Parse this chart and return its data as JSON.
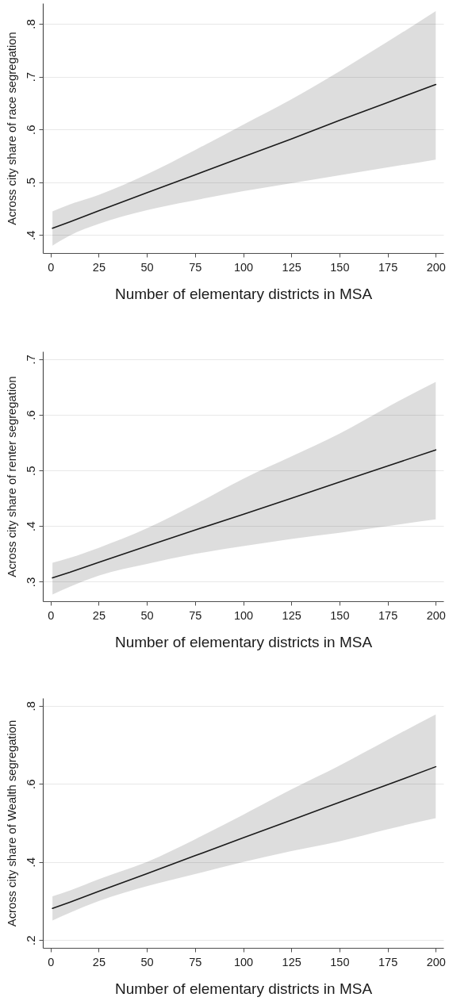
{
  "chart_data": [
    {
      "type": "line",
      "xlabel": "Number of elementary districts in MSA",
      "ylabel": "Across city share of race segregation",
      "xlim": [
        -4,
        204
      ],
      "xticks": [
        0,
        25,
        50,
        75,
        100,
        125,
        150,
        175,
        200
      ],
      "ylim": [
        0.366,
        0.839
      ],
      "yticks": [
        {
          "value": 0.4,
          "label": ".4"
        },
        {
          "value": 0.5,
          "label": ".5"
        },
        {
          "value": 0.6,
          "label": ".6"
        },
        {
          "value": 0.7,
          "label": ".7"
        },
        {
          "value": 0.8,
          "label": ".8"
        }
      ],
      "grid": "y",
      "x": [
        1,
        10,
        25,
        50,
        75,
        100,
        125,
        150,
        175,
        200
      ],
      "series": [
        {
          "color": "#1a1a1a",
          "values": [
            0.413,
            0.425,
            0.446,
            0.48,
            0.514,
            0.548,
            0.582,
            0.617,
            0.651,
            0.685
          ],
          "lower": [
            0.38,
            0.399,
            0.421,
            0.447,
            0.466,
            0.483,
            0.498,
            0.513,
            0.528,
            0.543
          ],
          "upper": [
            0.445,
            0.458,
            0.476,
            0.515,
            0.561,
            0.609,
            0.657,
            0.71,
            0.766,
            0.824
          ]
        }
      ]
    },
    {
      "type": "line",
      "xlabel": "Number of elementary districts in MSA",
      "ylabel": "Across city share of renter segregation",
      "xlim": [
        -4,
        204
      ],
      "xticks": [
        0,
        25,
        50,
        75,
        100,
        125,
        150,
        175,
        200
      ],
      "ylim": [
        0.265,
        0.714
      ],
      "yticks": [
        {
          "value": 0.3,
          "label": ".3"
        },
        {
          "value": 0.4,
          "label": ".4"
        },
        {
          "value": 0.5,
          "label": ".5"
        },
        {
          "value": 0.6,
          "label": ".6"
        },
        {
          "value": 0.7,
          "label": ".7"
        }
      ],
      "grid": "y",
      "x": [
        1,
        10,
        25,
        50,
        75,
        100,
        125,
        150,
        175,
        200
      ],
      "series": [
        {
          "color": "#1a1a1a",
          "values": [
            0.307,
            0.317,
            0.335,
            0.364,
            0.393,
            0.421,
            0.45,
            0.479,
            0.508,
            0.537
          ],
          "lower": [
            0.277,
            0.291,
            0.311,
            0.332,
            0.35,
            0.364,
            0.377,
            0.388,
            0.4,
            0.412
          ],
          "upper": [
            0.334,
            0.343,
            0.361,
            0.396,
            0.439,
            0.485,
            0.525,
            0.566,
            0.614,
            0.659
          ]
        }
      ]
    },
    {
      "type": "line",
      "xlabel": "Number of elementary districts in MSA",
      "ylabel": "Across city share of Wealth segregation",
      "xlim": [
        -4,
        204
      ],
      "xticks": [
        0,
        25,
        50,
        75,
        100,
        125,
        150,
        175,
        200
      ],
      "ylim": [
        0.18,
        0.82
      ],
      "yticks": [
        {
          "value": 0.2,
          "label": ".2"
        },
        {
          "value": 0.4,
          "label": ".4"
        },
        {
          "value": 0.6,
          "label": ".6"
        },
        {
          "value": 0.8,
          "label": ".8"
        }
      ],
      "grid": "y",
      "x": [
        1,
        10,
        25,
        50,
        75,
        100,
        125,
        150,
        175,
        200
      ],
      "series": [
        {
          "color": "#1a1a1a",
          "values": [
            0.281,
            0.297,
            0.325,
            0.37,
            0.416,
            0.462,
            0.507,
            0.553,
            0.598,
            0.644
          ],
          "lower": [
            0.25,
            0.27,
            0.3,
            0.338,
            0.369,
            0.4,
            0.428,
            0.453,
            0.484,
            0.512
          ],
          "upper": [
            0.312,
            0.327,
            0.356,
            0.4,
            0.458,
            0.521,
            0.586,
            0.647,
            0.713,
            0.778
          ]
        }
      ]
    }
  ]
}
